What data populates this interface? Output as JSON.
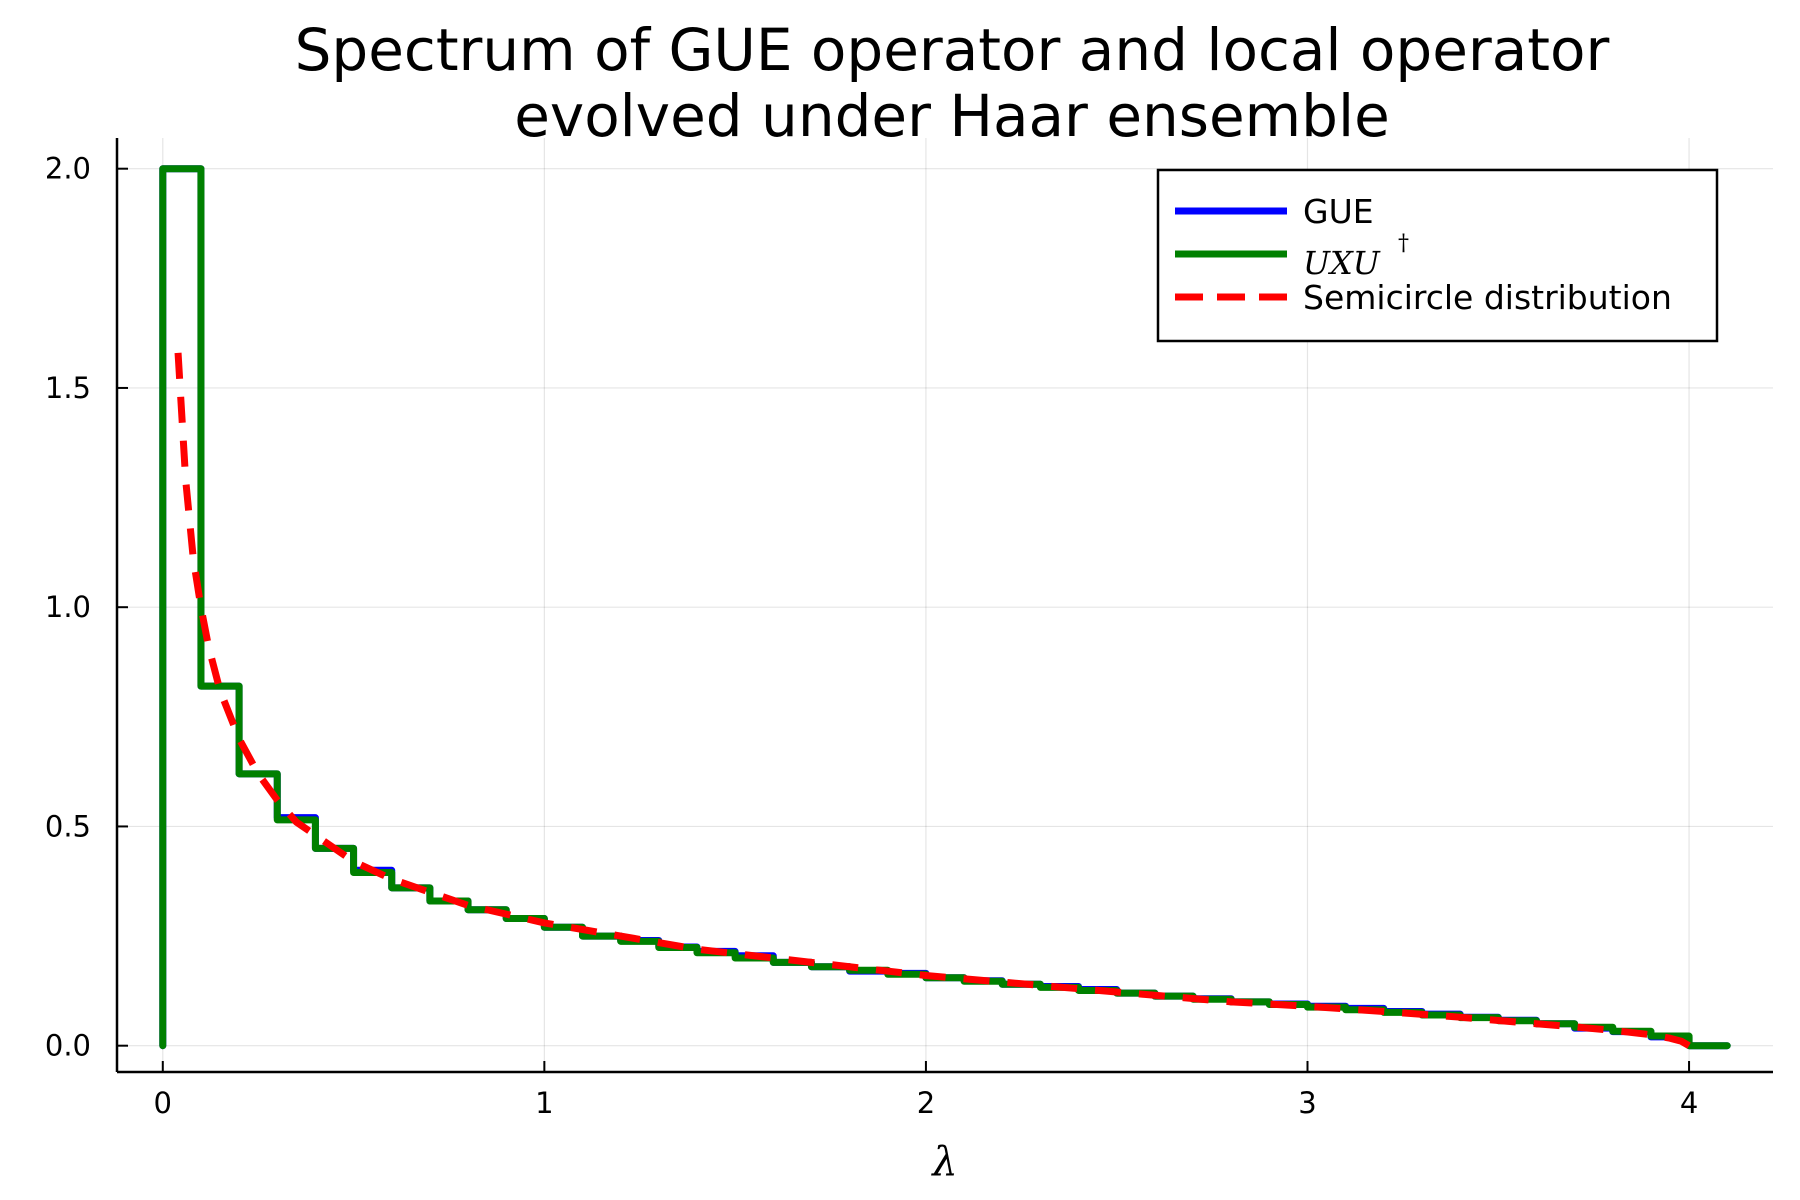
{
  "chart_data": {
    "type": "line",
    "title_lines": [
      "Spectrum of GUE operator and local operator",
      "evolved under Haar ensemble"
    ],
    "xlabel": "λ",
    "ylabel": "",
    "xlim": [
      -0.12,
      4.22
    ],
    "ylim": [
      -0.06,
      2.07
    ],
    "x_ticks": [
      0,
      1,
      2,
      3,
      4
    ],
    "x_tick_labels": [
      "0",
      "1",
      "2",
      "3",
      "4"
    ],
    "y_ticks": [
      0,
      0.5,
      1,
      1.5,
      2
    ],
    "y_tick_labels": [
      "0.0",
      "0.5",
      "1.0",
      "1.5",
      "2.0"
    ],
    "grid": true,
    "legend_position": "top-right",
    "series": [
      {
        "name": "GUE",
        "color": "#0000ff",
        "style": "step",
        "bin_edges": [
          0,
          0.1,
          0.2,
          0.3,
          0.4,
          0.5,
          0.6,
          0.7,
          0.8,
          0.9,
          1.0,
          1.1,
          1.2,
          1.3,
          1.4,
          1.5,
          1.6,
          1.7,
          1.8,
          1.9,
          2.0,
          2.1,
          2.2,
          2.3,
          2.4,
          2.5,
          2.6,
          2.7,
          2.8,
          2.9,
          3.0,
          3.1,
          3.2,
          3.3,
          3.4,
          3.5,
          3.6,
          3.7,
          3.8,
          3.9,
          4.0,
          4.1
        ],
        "values": [
          2.0,
          0.82,
          0.62,
          0.52,
          0.45,
          0.4,
          0.36,
          0.33,
          0.31,
          0.29,
          0.27,
          0.25,
          0.24,
          0.225,
          0.215,
          0.205,
          0.19,
          0.18,
          0.17,
          0.165,
          0.155,
          0.148,
          0.14,
          0.135,
          0.128,
          0.12,
          0.113,
          0.107,
          0.1,
          0.095,
          0.09,
          0.085,
          0.078,
          0.072,
          0.065,
          0.058,
          0.05,
          0.04,
          0.032,
          0.02,
          0.0
        ]
      },
      {
        "name": "U X U †",
        "color": "#008000",
        "style": "step",
        "bin_edges": [
          0,
          0.1,
          0.2,
          0.3,
          0.4,
          0.5,
          0.6,
          0.7,
          0.8,
          0.9,
          1.0,
          1.1,
          1.2,
          1.3,
          1.4,
          1.5,
          1.6,
          1.7,
          1.8,
          1.9,
          2.0,
          2.1,
          2.2,
          2.3,
          2.4,
          2.5,
          2.6,
          2.7,
          2.8,
          2.9,
          3.0,
          3.1,
          3.2,
          3.3,
          3.4,
          3.5,
          3.6,
          3.7,
          3.8,
          3.9,
          4.0,
          4.1
        ],
        "values": [
          2.0,
          0.82,
          0.62,
          0.515,
          0.45,
          0.395,
          0.36,
          0.33,
          0.31,
          0.29,
          0.27,
          0.25,
          0.238,
          0.224,
          0.212,
          0.2,
          0.19,
          0.18,
          0.172,
          0.163,
          0.155,
          0.147,
          0.14,
          0.133,
          0.126,
          0.12,
          0.113,
          0.106,
          0.1,
          0.094,
          0.088,
          0.082,
          0.076,
          0.07,
          0.064,
          0.057,
          0.05,
          0.042,
          0.033,
          0.022,
          0.0
        ]
      },
      {
        "name": "Semicircle distribution",
        "color": "#ff0000",
        "style": "dashed",
        "x": [
          0.04,
          0.06,
          0.08,
          0.1,
          0.12,
          0.15,
          0.2,
          0.25,
          0.3,
          0.35,
          0.4,
          0.5,
          0.6,
          0.7,
          0.8,
          0.9,
          1.0,
          1.2,
          1.4,
          1.6,
          1.8,
          2.0,
          2.2,
          2.4,
          2.6,
          2.8,
          3.0,
          3.2,
          3.4,
          3.6,
          3.7,
          3.8,
          3.9,
          3.95,
          3.98,
          4.0
        ],
        "y": [
          1.58,
          1.29,
          1.11,
          1.0,
          0.91,
          0.81,
          0.7,
          0.62,
          0.56,
          0.51,
          0.48,
          0.42,
          0.38,
          0.35,
          0.32,
          0.3,
          0.28,
          0.25,
          0.22,
          0.2,
          0.18,
          0.16,
          0.145,
          0.13,
          0.115,
          0.1,
          0.09,
          0.078,
          0.065,
          0.05,
          0.043,
          0.035,
          0.025,
          0.017,
          0.01,
          0.0
        ]
      }
    ]
  }
}
